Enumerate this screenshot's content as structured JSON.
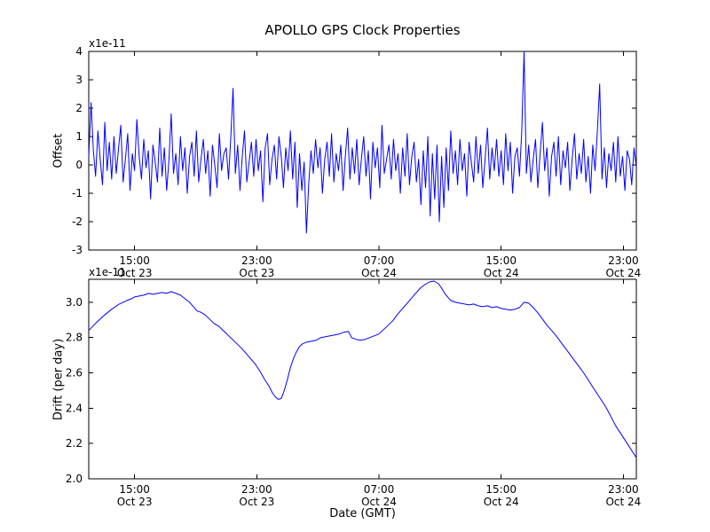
{
  "title": "APOLLO GPS Clock Properties",
  "colors": {
    "line": "#0000ff",
    "frame": "#000000",
    "background": "#ffffff"
  },
  "chart_data": [
    {
      "type": "line",
      "name": "offset-subplot",
      "ylabel": "Offset",
      "offset_label": "x1e-11",
      "xlim": [
        0,
        35.85
      ],
      "ylim": [
        -3,
        4
      ],
      "yticks": [
        {
          "v": -3,
          "label": "-3"
        },
        {
          "v": -2,
          "label": "-2"
        },
        {
          "v": -1,
          "label": "-1"
        },
        {
          "v": 0,
          "label": "0"
        },
        {
          "v": 1,
          "label": "1"
        },
        {
          "v": 2,
          "label": "2"
        },
        {
          "v": 3,
          "label": "3"
        },
        {
          "v": 4,
          "label": "4"
        }
      ],
      "xticks": [
        {
          "pos": 3,
          "time": "15:00",
          "date": "Oct 23"
        },
        {
          "pos": 11,
          "time": "23:00",
          "date": "Oct 23"
        },
        {
          "pos": 19,
          "time": "07:00",
          "date": "Oct 24"
        },
        {
          "pos": 27,
          "time": "15:00",
          "date": "Oct 24"
        },
        {
          "pos": 35,
          "time": "23:00",
          "date": "Oct 24"
        }
      ],
      "x_start": 0,
      "x_step": 0.15,
      "values": [
        0.3,
        2.2,
        0.5,
        -0.4,
        1.2,
        0.2,
        -0.7,
        1.5,
        -0.2,
        0.8,
        -0.5,
        1.0,
        -0.3,
        0.6,
        1.4,
        -0.6,
        0.2,
        1.1,
        -0.9,
        0.4,
        -0.2,
        1.6,
        0.3,
        -0.5,
        0.9,
        -0.1,
        0.5,
        -1.2,
        0.7,
        0.1,
        -0.6,
        1.3,
        -0.4,
        0.6,
        -0.9,
        0.2,
        1.8,
        -0.3,
        0.4,
        -0.7,
        1.0,
        -0.2,
        0.6,
        -1.0,
        0.3,
        0.8,
        -0.4,
        1.2,
        -0.6,
        0.2,
        0.9,
        -0.3,
        0.5,
        -1.1,
        0.7,
        0.0,
        -0.8,
        1.1,
        -0.2,
        0.4,
        0.6,
        -0.5,
        1.0,
        2.7,
        -0.3,
        0.7,
        -0.9,
        0.3,
        1.2,
        -0.6,
        0.1,
        0.8,
        -0.4,
        0.9,
        -0.2,
        0.5,
        -1.3,
        0.6,
        1.1,
        -0.7,
        0.2,
        0.7,
        -0.5,
        1.0,
        0.3,
        -0.8,
        0.6,
        -0.2,
        1.2,
        -0.5,
        0.8,
        -1.5,
        0.4,
        -0.9,
        0.1,
        -2.4,
        -0.7,
        0.5,
        -0.3,
        0.9,
        -0.1,
        0.6,
        -1.0,
        0.2,
        0.8,
        -0.4,
        1.1,
        -0.6,
        0.4,
        -0.2,
        0.7,
        -0.9,
        0.3,
        1.3,
        -0.5,
        0.6,
        -0.3,
        0.9,
        -0.7,
        0.2,
        1.0,
        -0.4,
        0.5,
        -1.2,
        0.8,
        -0.1,
        0.6,
        -0.8,
        1.4,
        -0.3,
        0.2,
        0.7,
        -0.5,
        0.9,
        -0.2,
        0.4,
        -1.0,
        0.6,
        -0.4,
        1.1,
        -0.7,
        0.3,
        0.8,
        -0.6,
        0.2,
        -1.4,
        0.5,
        -0.8,
        1.0,
        -1.8,
        0.4,
        -1.2,
        0.7,
        -2.0,
        0.3,
        -1.5,
        0.6,
        -0.9,
        1.2,
        -0.3,
        0.5,
        -0.7,
        0.9,
        -0.2,
        0.4,
        -1.1,
        0.8,
        0.1,
        -0.6,
        1.0,
        -0.3,
        0.7,
        -0.8,
        0.2,
        1.3,
        -0.5,
        0.6,
        -0.2,
        0.9,
        -0.4,
        0.5,
        -0.7,
        1.1,
        -0.2,
        0.8,
        -1.0,
        0.3,
        0.6,
        -0.4,
        1.2,
        4.0,
        -0.3,
        0.7,
        -0.6,
        0.2,
        0.9,
        -0.8,
        0.4,
        1.5,
        -0.2,
        0.6,
        -1.1,
        0.3,
        0.8,
        -0.4,
        1.0,
        -0.7,
        0.5,
        -0.1,
        0.8,
        -0.9,
        0.2,
        1.1,
        -0.5,
        0.4,
        -0.3,
        0.9,
        -0.6,
        0.3,
        -1.0,
        0.7,
        -0.2,
        1.2,
        2.85,
        -0.5,
        0.6,
        -0.8,
        0.4,
        -0.2,
        0.8,
        -0.6,
        1.0,
        -0.4,
        0.3,
        -0.9,
        0.5,
        0.2,
        -0.7,
        0.6,
        -0.1
      ]
    },
    {
      "type": "line",
      "name": "drift-subplot",
      "ylabel": "Drift (per day)",
      "xlabel": "Date (GMT)",
      "offset_label": "x1e-11",
      "xlim": [
        0,
        35.85
      ],
      "ylim": [
        2.0,
        3.13
      ],
      "yticks": [
        {
          "v": 2.0,
          "label": "2.0"
        },
        {
          "v": 2.2,
          "label": "2.2"
        },
        {
          "v": 2.4,
          "label": "2.4"
        },
        {
          "v": 2.6,
          "label": "2.6"
        },
        {
          "v": 2.8,
          "label": "2.8"
        },
        {
          "v": 3.0,
          "label": "3.0"
        }
      ],
      "xticks": [
        {
          "pos": 3,
          "time": "15:00",
          "date": "Oct 23"
        },
        {
          "pos": 11,
          "time": "23:00",
          "date": "Oct 23"
        },
        {
          "pos": 19,
          "time": "07:00",
          "date": "Oct 24"
        },
        {
          "pos": 27,
          "time": "15:00",
          "date": "Oct 24"
        },
        {
          "pos": 35,
          "time": "23:00",
          "date": "Oct 24"
        }
      ],
      "points": [
        [
          0,
          2.84
        ],
        [
          0.5,
          2.885
        ],
        [
          1,
          2.925
        ],
        [
          1.5,
          2.96
        ],
        [
          2,
          2.99
        ],
        [
          2.5,
          3.01
        ],
        [
          2.8,
          3.02
        ],
        [
          3,
          3.03
        ],
        [
          3.3,
          3.035
        ],
        [
          3.6,
          3.04
        ],
        [
          3.9,
          3.05
        ],
        [
          4.2,
          3.045
        ],
        [
          4.5,
          3.05
        ],
        [
          4.8,
          3.055
        ],
        [
          5.1,
          3.05
        ],
        [
          5.4,
          3.06
        ],
        [
          5.7,
          3.05
        ],
        [
          6,
          3.04
        ],
        [
          6.3,
          3.02
        ],
        [
          6.6,
          3.0
        ],
        [
          6.9,
          2.97
        ],
        [
          7.1,
          2.95
        ],
        [
          7.3,
          2.945
        ],
        [
          7.6,
          2.93
        ],
        [
          7.9,
          2.905
        ],
        [
          8.2,
          2.88
        ],
        [
          8.5,
          2.865
        ],
        [
          8.8,
          2.84
        ],
        [
          9.1,
          2.815
        ],
        [
          9.4,
          2.79
        ],
        [
          9.7,
          2.765
        ],
        [
          10,
          2.74
        ],
        [
          10.3,
          2.71
        ],
        [
          10.6,
          2.68
        ],
        [
          10.9,
          2.65
        ],
        [
          11.2,
          2.61
        ],
        [
          11.5,
          2.565
        ],
        [
          11.8,
          2.525
        ],
        [
          12,
          2.49
        ],
        [
          12.2,
          2.465
        ],
        [
          12.4,
          2.45
        ],
        [
          12.6,
          2.455
        ],
        [
          12.8,
          2.5
        ],
        [
          13,
          2.56
        ],
        [
          13.2,
          2.63
        ],
        [
          13.4,
          2.68
        ],
        [
          13.6,
          2.72
        ],
        [
          13.8,
          2.75
        ],
        [
          14,
          2.765
        ],
        [
          14.3,
          2.775
        ],
        [
          14.6,
          2.78
        ],
        [
          14.9,
          2.785
        ],
        [
          15.2,
          2.8
        ],
        [
          15.5,
          2.805
        ],
        [
          15.8,
          2.81
        ],
        [
          16.1,
          2.815
        ],
        [
          16.4,
          2.82
        ],
        [
          16.7,
          2.83
        ],
        [
          17,
          2.835
        ],
        [
          17.2,
          2.8
        ],
        [
          17.5,
          2.79
        ],
        [
          17.8,
          2.785
        ],
        [
          18.1,
          2.79
        ],
        [
          18.4,
          2.8
        ],
        [
          18.7,
          2.81
        ],
        [
          19,
          2.82
        ],
        [
          19.3,
          2.845
        ],
        [
          19.6,
          2.87
        ],
        [
          19.9,
          2.895
        ],
        [
          20.2,
          2.93
        ],
        [
          20.5,
          2.96
        ],
        [
          20.8,
          2.99
        ],
        [
          21.1,
          3.02
        ],
        [
          21.4,
          3.05
        ],
        [
          21.7,
          3.08
        ],
        [
          22,
          3.1
        ],
        [
          22.3,
          3.115
        ],
        [
          22.6,
          3.12
        ],
        [
          22.9,
          3.105
        ],
        [
          23.1,
          3.08
        ],
        [
          23.3,
          3.05
        ],
        [
          23.5,
          3.03
        ],
        [
          23.7,
          3.01
        ],
        [
          24,
          3.0
        ],
        [
          24.3,
          2.995
        ],
        [
          24.6,
          2.99
        ],
        [
          24.9,
          2.985
        ],
        [
          25.2,
          2.99
        ],
        [
          25.5,
          2.98
        ],
        [
          25.8,
          2.975
        ],
        [
          26.1,
          2.98
        ],
        [
          26.4,
          2.97
        ],
        [
          26.7,
          2.975
        ],
        [
          27,
          2.965
        ],
        [
          27.3,
          2.96
        ],
        [
          27.6,
          2.955
        ],
        [
          27.9,
          2.96
        ],
        [
          28.2,
          2.97
        ],
        [
          28.5,
          3.0
        ],
        [
          28.8,
          2.995
        ],
        [
          29.1,
          2.97
        ],
        [
          29.4,
          2.94
        ],
        [
          29.7,
          2.905
        ],
        [
          30,
          2.87
        ],
        [
          30.3,
          2.84
        ],
        [
          30.6,
          2.81
        ],
        [
          30.9,
          2.775
        ],
        [
          31.2,
          2.74
        ],
        [
          31.5,
          2.705
        ],
        [
          31.8,
          2.67
        ],
        [
          32.1,
          2.635
        ],
        [
          32.4,
          2.6
        ],
        [
          32.7,
          2.56
        ],
        [
          33,
          2.52
        ],
        [
          33.3,
          2.48
        ],
        [
          33.6,
          2.44
        ],
        [
          33.9,
          2.4
        ],
        [
          34.2,
          2.35
        ],
        [
          34.5,
          2.3
        ],
        [
          34.8,
          2.26
        ],
        [
          35.1,
          2.22
        ],
        [
          35.4,
          2.18
        ],
        [
          35.7,
          2.14
        ],
        [
          35.85,
          2.12
        ]
      ]
    }
  ]
}
